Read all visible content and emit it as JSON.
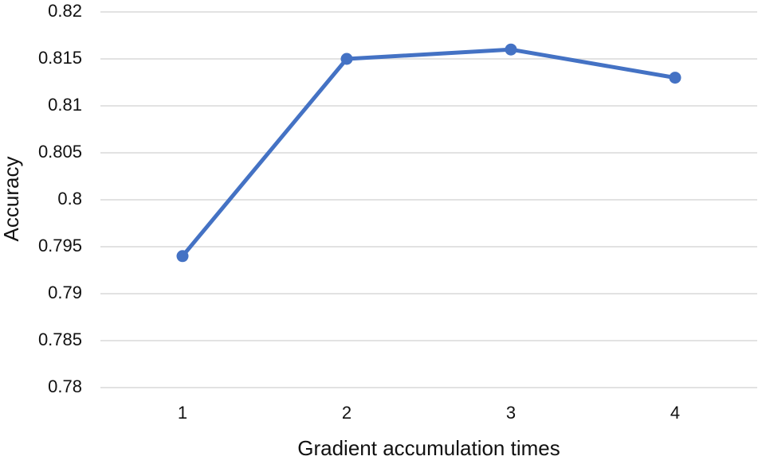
{
  "chart_data": {
    "type": "line",
    "x_label": "Gradient accumulation times",
    "y_label": "Accuracy",
    "categories": [
      "1",
      "2",
      "3",
      "4"
    ],
    "series": [
      {
        "name": "Accuracy",
        "color": "#4472c4",
        "values": [
          0.794,
          0.815,
          0.816,
          0.813
        ]
      }
    ],
    "ylim": [
      0.78,
      0.82
    ],
    "yticks": [
      0.78,
      0.785,
      0.79,
      0.795,
      0.8,
      0.805,
      0.81,
      0.815,
      0.82
    ],
    "grid": true,
    "legend": false
  }
}
